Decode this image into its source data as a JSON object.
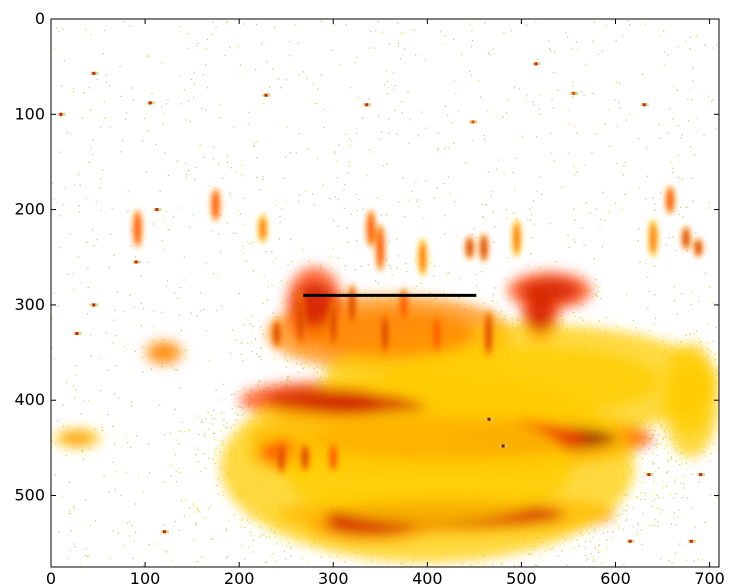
{
  "chart_data": {
    "type": "heatmap",
    "title": "",
    "xlabel": "",
    "ylabel": "",
    "xlim": [
      0,
      710
    ],
    "ylim": [
      575,
      0
    ],
    "x_ticks": [
      0,
      100,
      200,
      300,
      400,
      500,
      600,
      700
    ],
    "y_ticks": [
      0,
      100,
      200,
      300,
      400,
      500
    ],
    "grid": false,
    "colormap": [
      "#c8d890",
      "#ffff30",
      "#ffcc00",
      "#ff8800",
      "#ff4000",
      "#d02000",
      "#901000"
    ],
    "hot_regions": [
      {
        "x": 510,
        "y": 440,
        "w": 260,
        "h": 45,
        "level": 0.95
      },
      {
        "x": 420,
        "y": 440,
        "w": 420,
        "h": 75,
        "level": 0.7
      },
      {
        "x": 330,
        "y": 405,
        "w": 200,
        "h": 35,
        "level": 0.85
      },
      {
        "x": 290,
        "y": 400,
        "w": 180,
        "h": 40,
        "level": 0.8
      },
      {
        "x": 420,
        "y": 520,
        "w": 360,
        "h": 45,
        "level": 0.75
      },
      {
        "x": 340,
        "y": 530,
        "w": 140,
        "h": 40,
        "level": 0.8
      },
      {
        "x": 530,
        "y": 285,
        "w": 90,
        "h": 40,
        "level": 0.9
      },
      {
        "x": 520,
        "y": 310,
        "w": 40,
        "h": 60,
        "level": 0.8
      },
      {
        "x": 360,
        "y": 330,
        "w": 260,
        "h": 80,
        "level": 0.55
      },
      {
        "x": 280,
        "y": 300,
        "w": 60,
        "h": 80,
        "level": 0.8
      },
      {
        "x": 250,
        "y": 455,
        "w": 80,
        "h": 40,
        "level": 0.7
      },
      {
        "x": 400,
        "y": 470,
        "w": 440,
        "h": 200,
        "level": 0.3
      },
      {
        "x": 500,
        "y": 380,
        "w": 420,
        "h": 120,
        "level": 0.35
      },
      {
        "x": 120,
        "y": 350,
        "w": 40,
        "h": 25,
        "level": 0.5
      },
      {
        "x": 28,
        "y": 440,
        "w": 50,
        "h": 20,
        "level": 0.45
      },
      {
        "x": 680,
        "y": 400,
        "w": 60,
        "h": 120,
        "level": 0.3
      }
    ],
    "streaks": [
      {
        "x": 92,
        "y": 220,
        "len": 40,
        "level": 0.7
      },
      {
        "x": 175,
        "y": 195,
        "len": 35,
        "level": 0.7
      },
      {
        "x": 225,
        "y": 220,
        "len": 30,
        "level": 0.6
      },
      {
        "x": 240,
        "y": 330,
        "len": 30,
        "level": 0.8
      },
      {
        "x": 265,
        "y": 315,
        "len": 60,
        "level": 0.9
      },
      {
        "x": 300,
        "y": 320,
        "len": 50,
        "level": 0.9
      },
      {
        "x": 320,
        "y": 300,
        "len": 45,
        "level": 0.8
      },
      {
        "x": 340,
        "y": 220,
        "len": 40,
        "level": 0.7
      },
      {
        "x": 350,
        "y": 240,
        "len": 50,
        "level": 0.7
      },
      {
        "x": 355,
        "y": 330,
        "len": 45,
        "level": 0.85
      },
      {
        "x": 375,
        "y": 300,
        "len": 35,
        "level": 0.7
      },
      {
        "x": 395,
        "y": 250,
        "len": 40,
        "level": 0.6
      },
      {
        "x": 410,
        "y": 330,
        "len": 40,
        "level": 0.7
      },
      {
        "x": 445,
        "y": 240,
        "len": 25,
        "level": 0.8
      },
      {
        "x": 460,
        "y": 240,
        "len": 30,
        "level": 0.8
      },
      {
        "x": 465,
        "y": 330,
        "len": 50,
        "level": 0.8
      },
      {
        "x": 495,
        "y": 230,
        "len": 40,
        "level": 0.6
      },
      {
        "x": 640,
        "y": 230,
        "len": 40,
        "level": 0.6
      },
      {
        "x": 658,
        "y": 190,
        "len": 30,
        "level": 0.7
      },
      {
        "x": 675,
        "y": 230,
        "len": 25,
        "level": 0.8
      },
      {
        "x": 688,
        "y": 240,
        "len": 20,
        "level": 0.8
      },
      {
        "x": 245,
        "y": 460,
        "len": 35,
        "level": 0.8
      },
      {
        "x": 270,
        "y": 460,
        "len": 30,
        "level": 0.8
      },
      {
        "x": 300,
        "y": 460,
        "len": 30,
        "level": 0.7
      }
    ],
    "hotspots": [
      {
        "x": 45,
        "y": 57,
        "level": 0.9
      },
      {
        "x": 10,
        "y": 100,
        "level": 0.9
      },
      {
        "x": 105,
        "y": 88,
        "level": 0.9
      },
      {
        "x": 228,
        "y": 80,
        "level": 0.8
      },
      {
        "x": 335,
        "y": 90,
        "level": 0.9
      },
      {
        "x": 515,
        "y": 47,
        "level": 0.9
      },
      {
        "x": 630,
        "y": 90,
        "level": 0.9
      },
      {
        "x": 555,
        "y": 78,
        "level": 0.7
      },
      {
        "x": 27,
        "y": 330,
        "level": 0.8
      },
      {
        "x": 45,
        "y": 300,
        "level": 0.8
      },
      {
        "x": 112,
        "y": 200,
        "level": 0.8
      },
      {
        "x": 90,
        "y": 255,
        "level": 0.9
      },
      {
        "x": 448,
        "y": 108,
        "level": 0.7
      },
      {
        "x": 615,
        "y": 548,
        "level": 0.9
      },
      {
        "x": 680,
        "y": 548,
        "level": 0.9
      },
      {
        "x": 120,
        "y": 538,
        "level": 0.8
      },
      {
        "x": 635,
        "y": 478,
        "level": 0.8
      },
      {
        "x": 690,
        "y": 478,
        "level": 0.8
      },
      {
        "x": 480,
        "y": 448,
        "level": 0.95
      },
      {
        "x": 465,
        "y": 420,
        "level": 0.95
      }
    ],
    "annotation_line": {
      "x1": 268,
      "x2": 452,
      "y": 290,
      "color": "#000000"
    }
  }
}
